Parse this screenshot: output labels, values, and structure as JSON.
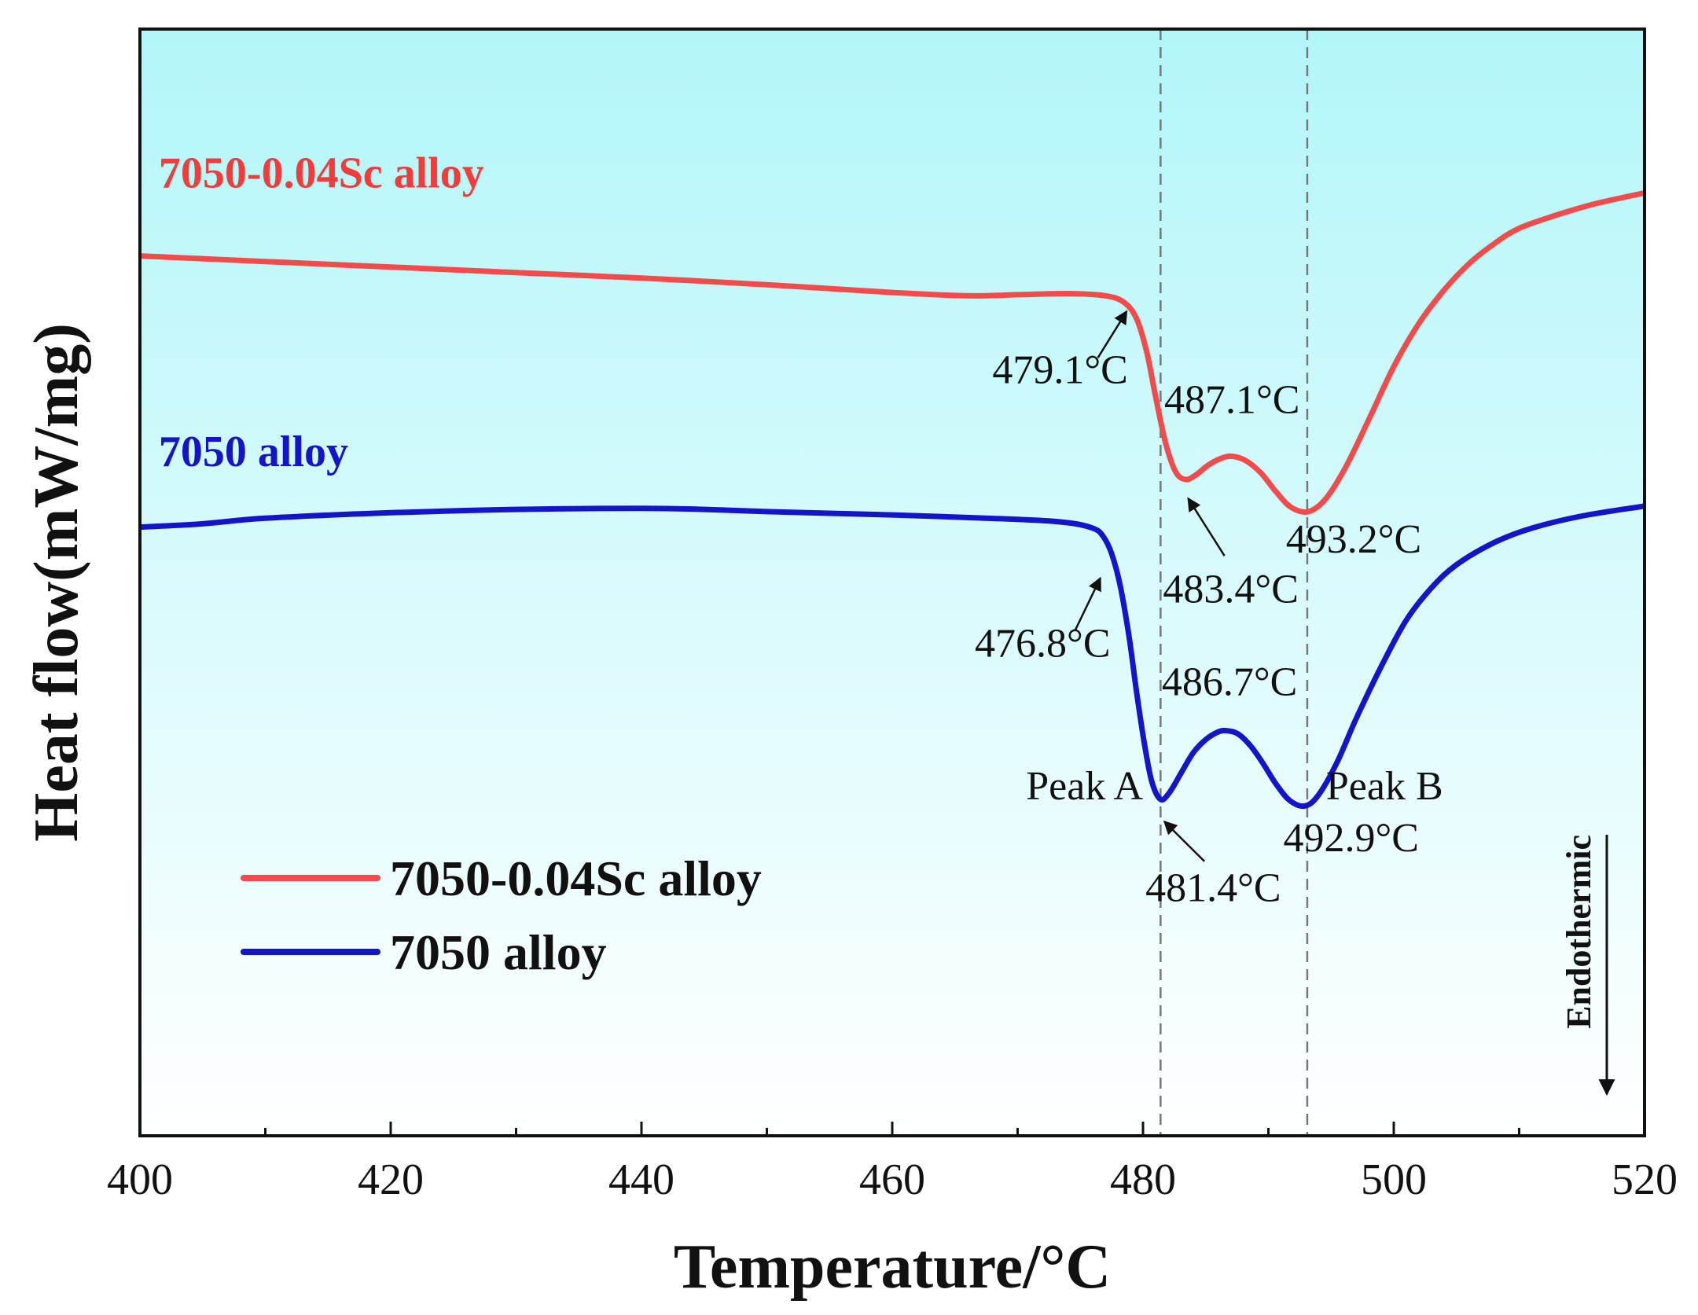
{
  "chart_data": {
    "type": "line",
    "title": "",
    "xlabel": "Temperature/°C",
    "ylabel": "Heat flow(mW/mg)",
    "xlim": [
      400,
      520
    ],
    "ylim": [
      0,
      100
    ],
    "xticks": [
      400,
      420,
      440,
      460,
      480,
      500,
      520
    ],
    "xticks_minor": [
      410,
      430,
      450,
      470,
      490,
      510
    ],
    "yticks_shown": false,
    "grid": false,
    "background_gradient": [
      "#b2f6f9",
      "#ffffff"
    ],
    "reference_lines_x": [
      481.4,
      493.1
    ],
    "series": [
      {
        "name": "7050-0.04Sc alloy",
        "color": "#f24b4b",
        "points": [
          [
            400,
            79.5
          ],
          [
            410,
            79.0
          ],
          [
            420,
            78.5
          ],
          [
            430,
            78.0
          ],
          [
            440,
            77.5
          ],
          [
            450,
            76.9
          ],
          [
            460,
            76.2
          ],
          [
            466,
            75.9
          ],
          [
            470,
            76.0
          ],
          [
            474,
            76.1
          ],
          [
            477,
            75.9
          ],
          [
            478.5,
            75.3
          ],
          [
            479.5,
            73.8
          ],
          [
            480.3,
            70.8
          ],
          [
            481,
            66.8
          ],
          [
            481.8,
            62.6
          ],
          [
            482.6,
            60.0
          ],
          [
            483.4,
            59.3
          ],
          [
            484.2,
            59.7
          ],
          [
            485.2,
            60.6
          ],
          [
            486.2,
            61.2
          ],
          [
            487.1,
            61.4
          ],
          [
            488.2,
            61.0
          ],
          [
            489.4,
            59.9
          ],
          [
            490.6,
            58.2
          ],
          [
            491.8,
            56.8
          ],
          [
            493.2,
            56.4
          ],
          [
            494.6,
            57.6
          ],
          [
            496.2,
            60.5
          ],
          [
            498,
            64.7
          ],
          [
            500,
            69.5
          ],
          [
            502,
            73.4
          ],
          [
            504,
            76.4
          ],
          [
            506,
            78.8
          ],
          [
            508,
            80.6
          ],
          [
            510,
            82.0
          ],
          [
            513,
            83.2
          ],
          [
            516,
            84.2
          ],
          [
            520,
            85.2
          ]
        ]
      },
      {
        "name": "7050 alloy",
        "color": "#1414c8",
        "points": [
          [
            400,
            55.0
          ],
          [
            405,
            55.3
          ],
          [
            410,
            55.8
          ],
          [
            420,
            56.3
          ],
          [
            430,
            56.6
          ],
          [
            440,
            56.7
          ],
          [
            445,
            56.6
          ],
          [
            450,
            56.4
          ],
          [
            460,
            56.1
          ],
          [
            470,
            55.7
          ],
          [
            474,
            55.4
          ],
          [
            476,
            54.9
          ],
          [
            476.8,
            54.2
          ],
          [
            477.5,
            52.6
          ],
          [
            478.2,
            49.6
          ],
          [
            478.9,
            45.0
          ],
          [
            479.5,
            40.0
          ],
          [
            480.1,
            35.5
          ],
          [
            480.7,
            32.0
          ],
          [
            481.4,
            30.4
          ],
          [
            482.1,
            31.0
          ],
          [
            483,
            32.7
          ],
          [
            484,
            34.6
          ],
          [
            485,
            35.8
          ],
          [
            486,
            36.5
          ],
          [
            486.7,
            36.6
          ],
          [
            487.6,
            36.3
          ],
          [
            488.6,
            35.2
          ],
          [
            489.6,
            33.6
          ],
          [
            490.6,
            31.8
          ],
          [
            491.7,
            30.3
          ],
          [
            492.9,
            29.8
          ],
          [
            494,
            30.8
          ],
          [
            495.5,
            33.8
          ],
          [
            497,
            37.7
          ],
          [
            499,
            42.4
          ],
          [
            501,
            46.6
          ],
          [
            503,
            49.5
          ],
          [
            505,
            51.6
          ],
          [
            508,
            53.6
          ],
          [
            511,
            54.9
          ],
          [
            515,
            56.0
          ],
          [
            520,
            56.9
          ]
        ]
      }
    ],
    "series_labels": [
      {
        "text": "7050-0.04Sc alloy",
        "color": "#f23c3c",
        "x": 401.5,
        "y": 85.7
      },
      {
        "text": "7050 alloy",
        "color": "#1414c8",
        "x": 401.5,
        "y": 60.5
      }
    ],
    "annotations": [
      {
        "text": "479.1°C",
        "x": 478.8,
        "y": 68.0,
        "anchor": "end",
        "arrow_from": [
          476.4,
          70.3
        ],
        "arrow_to": [
          478.7,
          74.5
        ]
      },
      {
        "text": "487.1°C",
        "x": 487.1,
        "y": 65.3,
        "anchor": "middle"
      },
      {
        "text": "483.4°C",
        "x": 487.0,
        "y": 48.2,
        "anchor": "middle",
        "arrow_from": [
          486.5,
          52.4
        ],
        "arrow_to": [
          483.6,
          57.6
        ]
      },
      {
        "text": "493.2°C",
        "x": 496.8,
        "y": 52.7,
        "anchor": "middle"
      },
      {
        "text": "476.8°C",
        "x": 477.4,
        "y": 43.3,
        "anchor": "end",
        "arrow_from": [
          474.6,
          45.7
        ],
        "arrow_to": [
          476.6,
          50.4
        ]
      },
      {
        "text": "486.7°C",
        "x": 486.9,
        "y": 39.8,
        "anchor": "middle"
      },
      {
        "text": "Peak A",
        "x": 480.0,
        "y": 30.4,
        "anchor": "end"
      },
      {
        "text": "Peak B",
        "x": 494.6,
        "y": 30.4,
        "anchor": "start"
      },
      {
        "text": "492.9°C",
        "x": 496.6,
        "y": 25.7,
        "anchor": "middle"
      },
      {
        "text": "481.4°C",
        "x": 485.6,
        "y": 21.2,
        "anchor": "middle",
        "arrow_from": [
          484.9,
          24.8
        ],
        "arrow_to": [
          481.7,
          28.4
        ]
      }
    ],
    "legend": {
      "placement": "bottom-left",
      "entries": [
        {
          "label": "7050-0.04Sc alloy",
          "color": "#f24b4b"
        },
        {
          "label": "7050 alloy",
          "color": "#1414c8"
        }
      ]
    },
    "endothermic": {
      "label": "Endothermic",
      "direction": "down"
    }
  }
}
